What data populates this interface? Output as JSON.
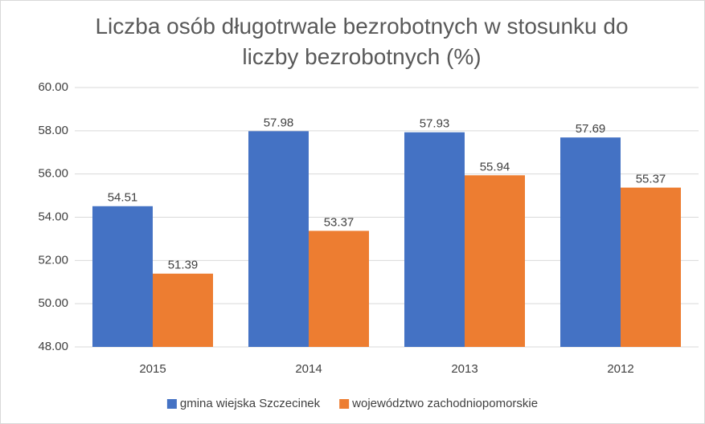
{
  "chart_data": {
    "type": "bar",
    "title": "Liczba osób długotrwale bezrobotnych w stosunku do liczby bezrobotnych (%)",
    "categories": [
      "2015",
      "2014",
      "2013",
      "2012"
    ],
    "series": [
      {
        "name": "gmina wiejska Szczecinek",
        "color": "#4472c4",
        "values": [
          54.51,
          57.98,
          57.93,
          57.69
        ]
      },
      {
        "name": "województwo zachodniopomorskie",
        "color": "#ed7d31",
        "values": [
          51.39,
          53.37,
          55.94,
          55.37
        ]
      }
    ],
    "ylim": [
      48,
      60
    ],
    "yticks": [
      {
        "value": 48,
        "label": "48.00"
      },
      {
        "value": 50,
        "label": "50.00"
      },
      {
        "value": 52,
        "label": "52.00"
      },
      {
        "value": 54,
        "label": "54.00"
      },
      {
        "value": 56,
        "label": "56.00"
      },
      {
        "value": 58,
        "label": "58.00"
      },
      {
        "value": 60,
        "label": "60.00"
      }
    ],
    "grid": true,
    "legend": "bottom"
  }
}
